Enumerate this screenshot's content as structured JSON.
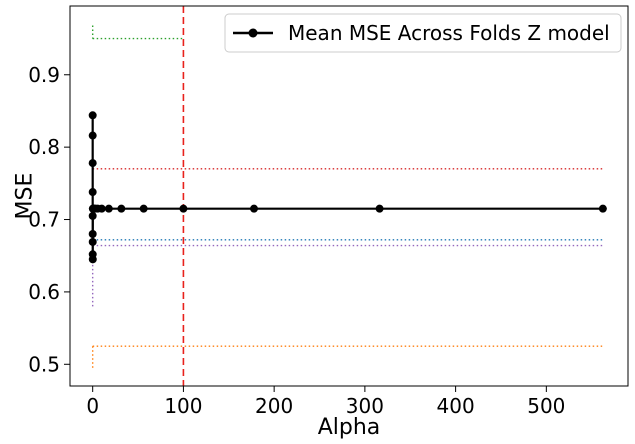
{
  "chart_data": {
    "type": "line",
    "xlabel": "Alpha",
    "ylabel": "MSE",
    "xlim": [
      -25,
      590
    ],
    "ylim": [
      0.47,
      0.995
    ],
    "xticks": [
      0,
      100,
      200,
      300,
      400,
      500
    ],
    "yticks": [
      0.5,
      0.6,
      0.7,
      0.8,
      0.9
    ],
    "grid": false,
    "legend_placement": "top-right",
    "series": [
      {
        "name": "Mean MSE Across Folds Z model",
        "color": "#000000",
        "marker": "circle",
        "x": [
          0.001,
          0.002,
          0.003,
          0.005,
          0.01,
          0.02,
          0.03,
          0.05,
          0.1,
          0.2,
          0.3,
          0.5,
          1,
          1.8,
          3.2,
          5.6,
          10,
          17.8,
          31.6,
          56.2,
          100,
          177.8,
          316.2,
          562.3
        ],
        "y": [
          0.844,
          0.816,
          0.778,
          0.738,
          0.705,
          0.68,
          0.669,
          0.652,
          0.645,
          0.715,
          0.715,
          0.715,
          0.715,
          0.715,
          0.715,
          0.715,
          0.715,
          0.715,
          0.715,
          0.715,
          0.715,
          0.715,
          0.715,
          0.715
        ]
      }
    ],
    "reference_lines": [
      {
        "orientation": "vertical",
        "x": 100,
        "style": "dashed",
        "color": "#e8211c"
      },
      {
        "orientation": "horizontal",
        "y": 0.95,
        "x_range": [
          0,
          100
        ],
        "style": "dotted",
        "color": "#2ca02c"
      },
      {
        "orientation": "horizontal",
        "y": 0.77,
        "x_range": [
          0,
          562.3
        ],
        "style": "dotted",
        "color": "#d62728"
      },
      {
        "orientation": "horizontal",
        "y": 0.672,
        "x_range": [
          0,
          562.3
        ],
        "style": "dotted",
        "color": "#1f77b4"
      },
      {
        "orientation": "horizontal",
        "y": 0.664,
        "x_range": [
          0,
          562.3
        ],
        "style": "dotted",
        "color": "#9467bd"
      },
      {
        "orientation": "horizontal",
        "y": 0.525,
        "x_range": [
          0,
          562.3
        ],
        "style": "dotted",
        "color": "#ff7f0e"
      },
      {
        "orientation": "vertical",
        "x": 0,
        "y_range": [
          0.95,
          0.968
        ],
        "style": "dotted",
        "color": "#2ca02c"
      },
      {
        "orientation": "vertical",
        "x": 0,
        "y_range": [
          0.495,
          0.525
        ],
        "style": "dotted",
        "color": "#ff7f0e"
      },
      {
        "orientation": "vertical",
        "x": 0,
        "y_range": [
          0.58,
          0.77
        ],
        "style": "dotted",
        "color": "#9467bd"
      }
    ]
  }
}
